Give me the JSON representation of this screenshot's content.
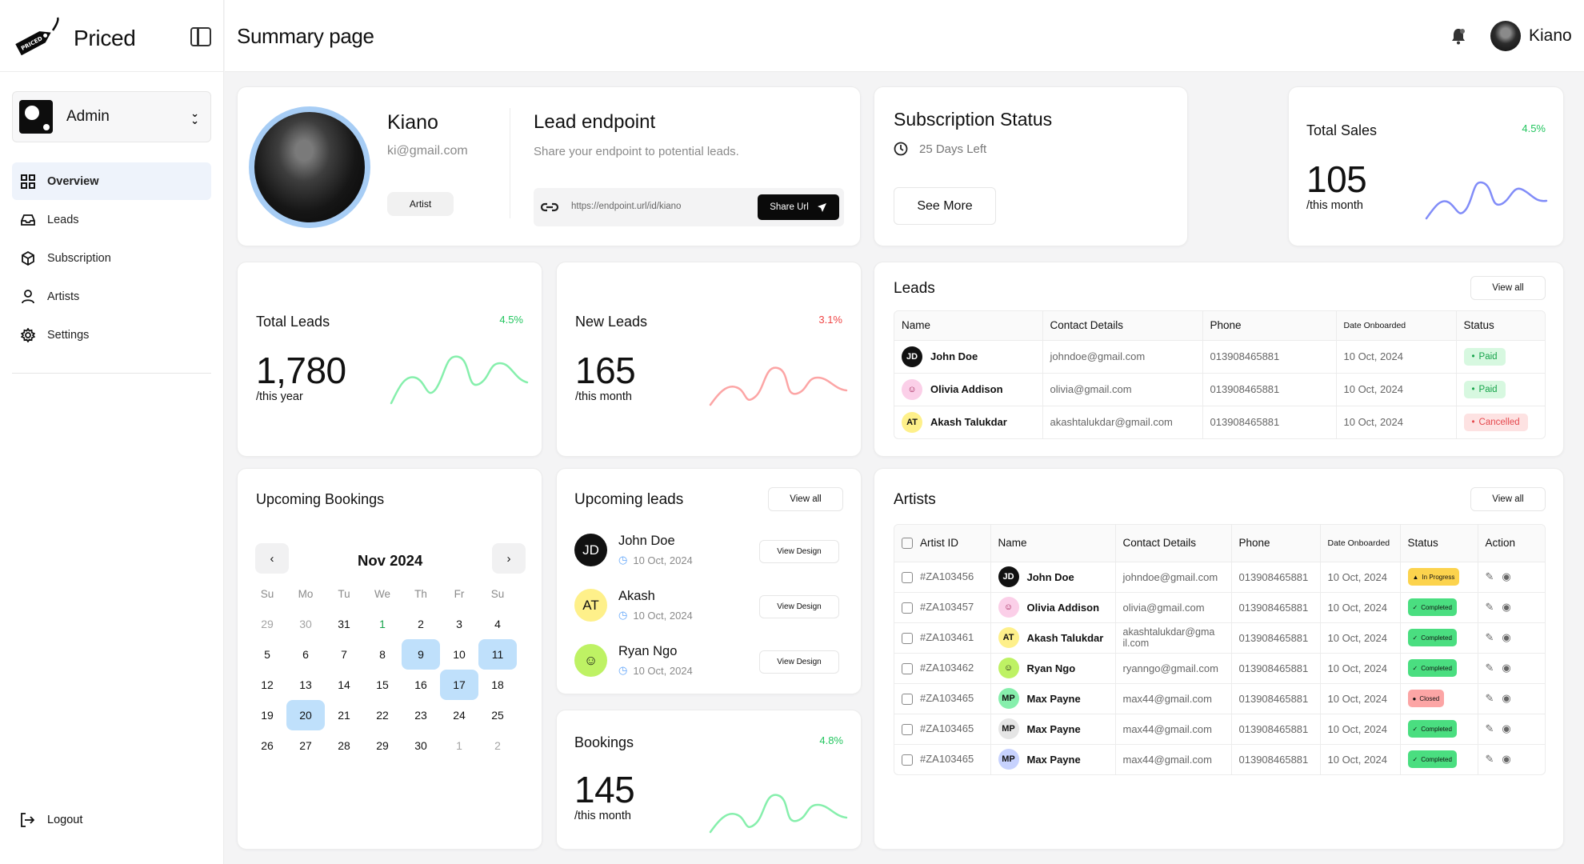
{
  "app": {
    "name": "Priced",
    "logo_text": "PRICED"
  },
  "sidebar": {
    "role": "Admin",
    "items": [
      {
        "label": "Overview",
        "icon": "grid-icon",
        "active": true
      },
      {
        "label": "Leads",
        "icon": "inbox-icon",
        "active": false
      },
      {
        "label": "Subscription",
        "icon": "box-icon",
        "active": false
      },
      {
        "label": "Artists",
        "icon": "user-icon",
        "active": false
      },
      {
        "label": "Settings",
        "icon": "gear-icon",
        "active": false
      }
    ],
    "logout": "Logout"
  },
  "header": {
    "title": "Summary page",
    "user_name": "Kiano"
  },
  "profile": {
    "name": "Kiano",
    "email": "ki@gmail.com",
    "badge": "Artist",
    "lead_title": "Lead endpoint",
    "lead_sub": "Share your endpoint to potential leads.",
    "endpoint_url": "https://endpoint.url/id/kiano",
    "share_label": "Share Url"
  },
  "subscription": {
    "title": "Subscription Status",
    "days_left": "25 Days Left",
    "button": "See More"
  },
  "total_sales": {
    "label": "Total Sales",
    "pct": "4.5%",
    "value": "105",
    "sub": "/this month"
  },
  "total_leads": {
    "label": "Total Leads",
    "pct": "4.5%",
    "value": "1,780",
    "sub": "/this year"
  },
  "new_leads": {
    "label": "New Leads",
    "pct": "3.1%",
    "value": "165",
    "sub": "/this month"
  },
  "bookings": {
    "label": "Bookings",
    "pct": "4.8%",
    "value": "145",
    "sub": "/this month"
  },
  "colors": {
    "positive": "#22c55e",
    "negative": "#ef4444",
    "spark_green": "#86efac",
    "spark_red": "#fca5a5",
    "spark_blue": "#818cf8",
    "accent_blue": "#a7cdf5"
  },
  "leads_table": {
    "title": "Leads",
    "view_all": "View all",
    "headers": [
      "Name",
      "Contact Details",
      "Phone",
      "Date Onboarded",
      "Status"
    ],
    "rows": [
      {
        "initials": "JD",
        "name": "John Doe",
        "email": "johndoe@gmail.com",
        "phone": "013908465881",
        "date": "10 Oct, 2024",
        "status": "Paid"
      },
      {
        "initials": "",
        "name": "Olivia Addison",
        "email": "olivia@gmail.com",
        "phone": "013908465881",
        "date": "10 Oct, 2024",
        "status": "Paid"
      },
      {
        "initials": "AT",
        "name": "Akash Talukdar",
        "email": "akashtalukdar@gmail.com",
        "phone": "013908465881",
        "date": "10 Oct, 2024",
        "status": "Cancelled"
      }
    ]
  },
  "calendar": {
    "title": "Upcoming Bookings",
    "month": "Nov 2024",
    "weekdays": [
      "Su",
      "Mo",
      "Tu",
      "We",
      "Th",
      "Fr",
      "Su"
    ],
    "days": [
      "29",
      "30",
      "31",
      "1",
      "2",
      "3",
      "4",
      "5",
      "6",
      "7",
      "8",
      "9",
      "10",
      "11",
      "12",
      "13",
      "14",
      "15",
      "16",
      "17",
      "18",
      "19",
      "20",
      "21",
      "22",
      "23",
      "24",
      "25",
      "26",
      "27",
      "28",
      "29",
      "30",
      "1",
      "2"
    ]
  },
  "upcoming_leads": {
    "title": "Upcoming leads",
    "view_all": "View all",
    "items": [
      {
        "initials": "JD",
        "name": "John Doe",
        "date": "10 Oct, 2024",
        "button": "View Design"
      },
      {
        "initials": "AT",
        "name": "Akash",
        "date": "10 Oct, 2024",
        "button": "View Design"
      },
      {
        "initials": "",
        "name": "Ryan Ngo",
        "date": "10 Oct, 2024",
        "button": "View Design"
      }
    ]
  },
  "artists_table": {
    "title": "Artists",
    "view_all": "View all",
    "headers": [
      "Artist ID",
      "Name",
      "Contact Details",
      "Phone",
      "Date Onboarded",
      "Status",
      "Action"
    ],
    "rows": [
      {
        "id": "#ZA103456",
        "initials": "JD",
        "name": "John Doe",
        "email": "johndoe@gmail.com",
        "phone": "013908465881",
        "date": "10 Oct, 2024",
        "status": "In Progress"
      },
      {
        "id": "#ZA103457",
        "initials": "",
        "name": "Olivia Addison",
        "email": "olivia@gmail.com",
        "phone": "013908465881",
        "date": "10 Oct, 2024",
        "status": "Completed"
      },
      {
        "id": "#ZA103461",
        "initials": "AT",
        "name": "Akash Talukdar",
        "email": "akashtalukdar@gma il.com",
        "phone": "013908465881",
        "date": "10 Oct, 2024",
        "status": "Completed"
      },
      {
        "id": "#ZA103462",
        "initials": "",
        "name": "Ryan Ngo",
        "email": "ryanngo@gmail.com",
        "phone": "013908465881",
        "date": "10 Oct, 2024",
        "status": "Completed"
      },
      {
        "id": "#ZA103465",
        "initials": "MP",
        "name": "Max Payne",
        "email": "max44@gmail.com",
        "phone": "013908465881",
        "date": "10 Oct, 2024",
        "status": "Closed"
      },
      {
        "id": "#ZA103465",
        "initials": "MP",
        "name": "Max Payne",
        "email": "max44@gmail.com",
        "phone": "013908465881",
        "date": "10 Oct, 2024",
        "status": "Completed"
      },
      {
        "id": "#ZA103465",
        "initials": "MP",
        "name": "Max Payne",
        "email": "max44@gmail.com",
        "phone": "013908465881",
        "date": "10 Oct, 2024",
        "status": "Completed"
      }
    ]
  }
}
